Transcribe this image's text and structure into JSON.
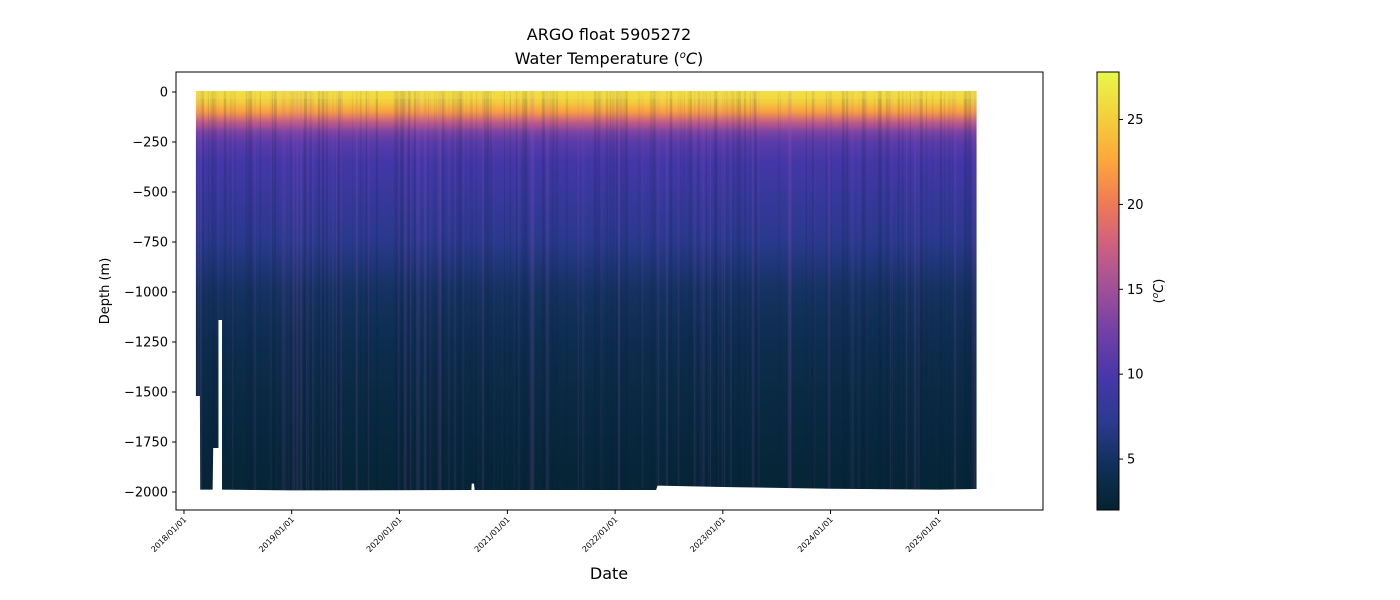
{
  "chart_data": {
    "type": "heatmap",
    "title_line1": "ARGO float 5905272",
    "title_prefix": "Water Temperature (",
    "title_unit_sup": "o",
    "title_unit_c": "C",
    "title_suffix": ")",
    "xlabel": "Date",
    "ylabel": "Depth (m)",
    "colorbar_label_open": "(",
    "colorbar_label_sup": "o",
    "colorbar_label_c": "C",
    "colorbar_label_close": ")",
    "x_ticks": [
      "2018/01/01",
      "2019/01/01",
      "2020/01/01",
      "2021/01/01",
      "2022/01/01",
      "2023/01/01",
      "2024/01/01",
      "2025/01/01"
    ],
    "xlim": [
      "2017-12-05",
      "2025-12-21"
    ],
    "data_x_range": [
      "2018-02-10",
      "2025-05-10"
    ],
    "y_ticks": [
      0,
      -250,
      -500,
      -750,
      -1000,
      -1250,
      -1500,
      -1750,
      -2000
    ],
    "ylim": [
      -2090,
      100
    ],
    "colorbar_ticks": [
      5,
      10,
      15,
      20,
      25
    ],
    "colorbar_range": [
      2,
      27.8
    ],
    "colormap": "thermal",
    "colormap_stops": [
      "#04232f",
      "#0f3058",
      "#2b3a8f",
      "#4637a9",
      "#6f3fa8",
      "#9d4f99",
      "#cc5f82",
      "#ef7a56",
      "#fca83a",
      "#f3d13b",
      "#e8f84a"
    ],
    "depth_profile": [
      {
        "depth": 0,
        "temp": 26
      },
      {
        "depth": -50,
        "temp": 25
      },
      {
        "depth": -100,
        "temp": 22
      },
      {
        "depth": -150,
        "temp": 17
      },
      {
        "depth": -200,
        "temp": 13
      },
      {
        "depth": -250,
        "temp": 11
      },
      {
        "depth": -350,
        "temp": 9.5
      },
      {
        "depth": -500,
        "temp": 8.5
      },
      {
        "depth": -750,
        "temp": 7
      },
      {
        "depth": -1000,
        "temp": 5
      },
      {
        "depth": -1250,
        "temp": 4
      },
      {
        "depth": -1500,
        "temp": 3.3
      },
      {
        "depth": -1750,
        "temp": 2.8
      },
      {
        "depth": -2000,
        "temp": 2.4
      }
    ]
  }
}
